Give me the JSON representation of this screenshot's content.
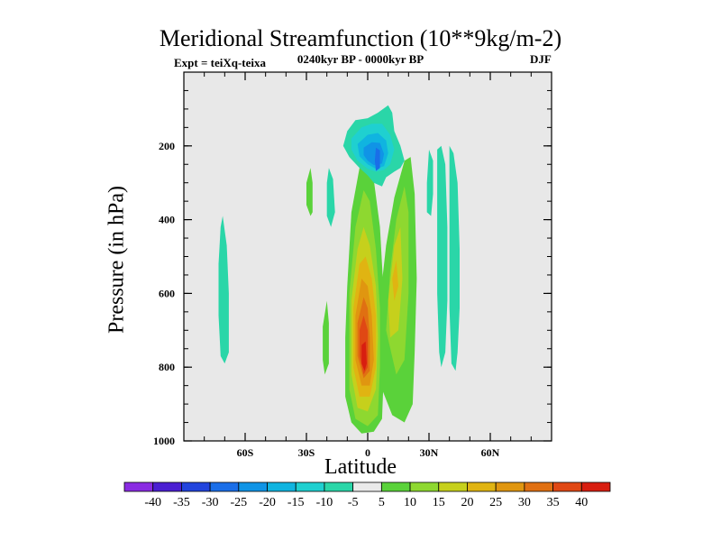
{
  "chart_data": {
    "type": "filled-contour",
    "title": "Meridional Streamfunction (10**9kg/m-2)",
    "experiment": "Expt = teiXq-teixa",
    "period": "0240kyr BP - 0000kyr BP",
    "season": "DJF",
    "xlabel": "Latitude",
    "ylabel": "Pressure (in hPa)",
    "x_ticks": [
      "60S",
      "30S",
      "0",
      "30N",
      "60N"
    ],
    "x_tick_values": [
      -60,
      -30,
      0,
      30,
      60
    ],
    "xlim": [
      -90,
      90
    ],
    "y_ticks": [
      "200",
      "400",
      "600",
      "800",
      "1000"
    ],
    "y_tick_values": [
      200,
      400,
      600,
      800,
      1000
    ],
    "ylim": [
      0,
      1000
    ],
    "y_inverted": true,
    "background_color": "#e8e8e8",
    "colorbar": {
      "levels": [
        -40,
        -35,
        -30,
        -25,
        -20,
        -15,
        -10,
        -5,
        5,
        10,
        15,
        20,
        25,
        30,
        35,
        40
      ],
      "labels": [
        "-40",
        "-35",
        "-30",
        "-25",
        "-20",
        "-15",
        "-10",
        "-5",
        "5",
        "10",
        "15",
        "20",
        "25",
        "30",
        "35",
        "40"
      ],
      "colors": [
        "#8a2be2",
        "#4b1fd2",
        "#2244dd",
        "#1a6ee8",
        "#1094e6",
        "#10b4e0",
        "#1fd0d0",
        "#2ad6a8",
        "#eaeaea",
        "#5ad23a",
        "#8ed830",
        "#c6d01c",
        "#e0b412",
        "#e09610",
        "#e07012",
        "#e04814",
        "#d81e10"
      ]
    },
    "features": [
      {
        "name": "negative cell upper tropics",
        "lat_range": [
          -12,
          18
        ],
        "p_range": [
          90,
          310
        ],
        "min_value": -25,
        "center": [
          6,
          240
        ]
      },
      {
        "name": "positive cell equatorial column",
        "lat_range": [
          -10,
          12
        ],
        "p_range": [
          220,
          980
        ],
        "max_value": 40,
        "center": [
          -1,
          780
        ]
      },
      {
        "name": "positive lobe north of equator",
        "lat_range": [
          6,
          24
        ],
        "p_range": [
          230,
          960
        ],
        "max_value": 20
      },
      {
        "name": "weak negative band 34N-44N",
        "lat_range": [
          34,
          44
        ],
        "p_range": [
          200,
          810
        ],
        "value": -5
      },
      {
        "name": "weak negative band 68S-74S",
        "lat_range": [
          -74,
          -68
        ],
        "p_range": [
          390,
          790
        ],
        "value": -5
      },
      {
        "name": "small positive blob 27S",
        "lat_range": [
          -30,
          -27
        ],
        "p_range": [
          260,
          390
        ],
        "value": 5
      },
      {
        "name": "small negative blob 18S",
        "lat_range": [
          -20,
          -16
        ],
        "p_range": [
          260,
          420
        ],
        "value": -5
      },
      {
        "name": "small positive blob 20S",
        "lat_range": [
          -22,
          -18
        ],
        "p_range": [
          620,
          820
        ],
        "value": 5
      },
      {
        "name": "small negative blob 30N",
        "lat_range": [
          29,
          32
        ],
        "p_range": [
          210,
          400
        ],
        "value": -5
      }
    ]
  }
}
